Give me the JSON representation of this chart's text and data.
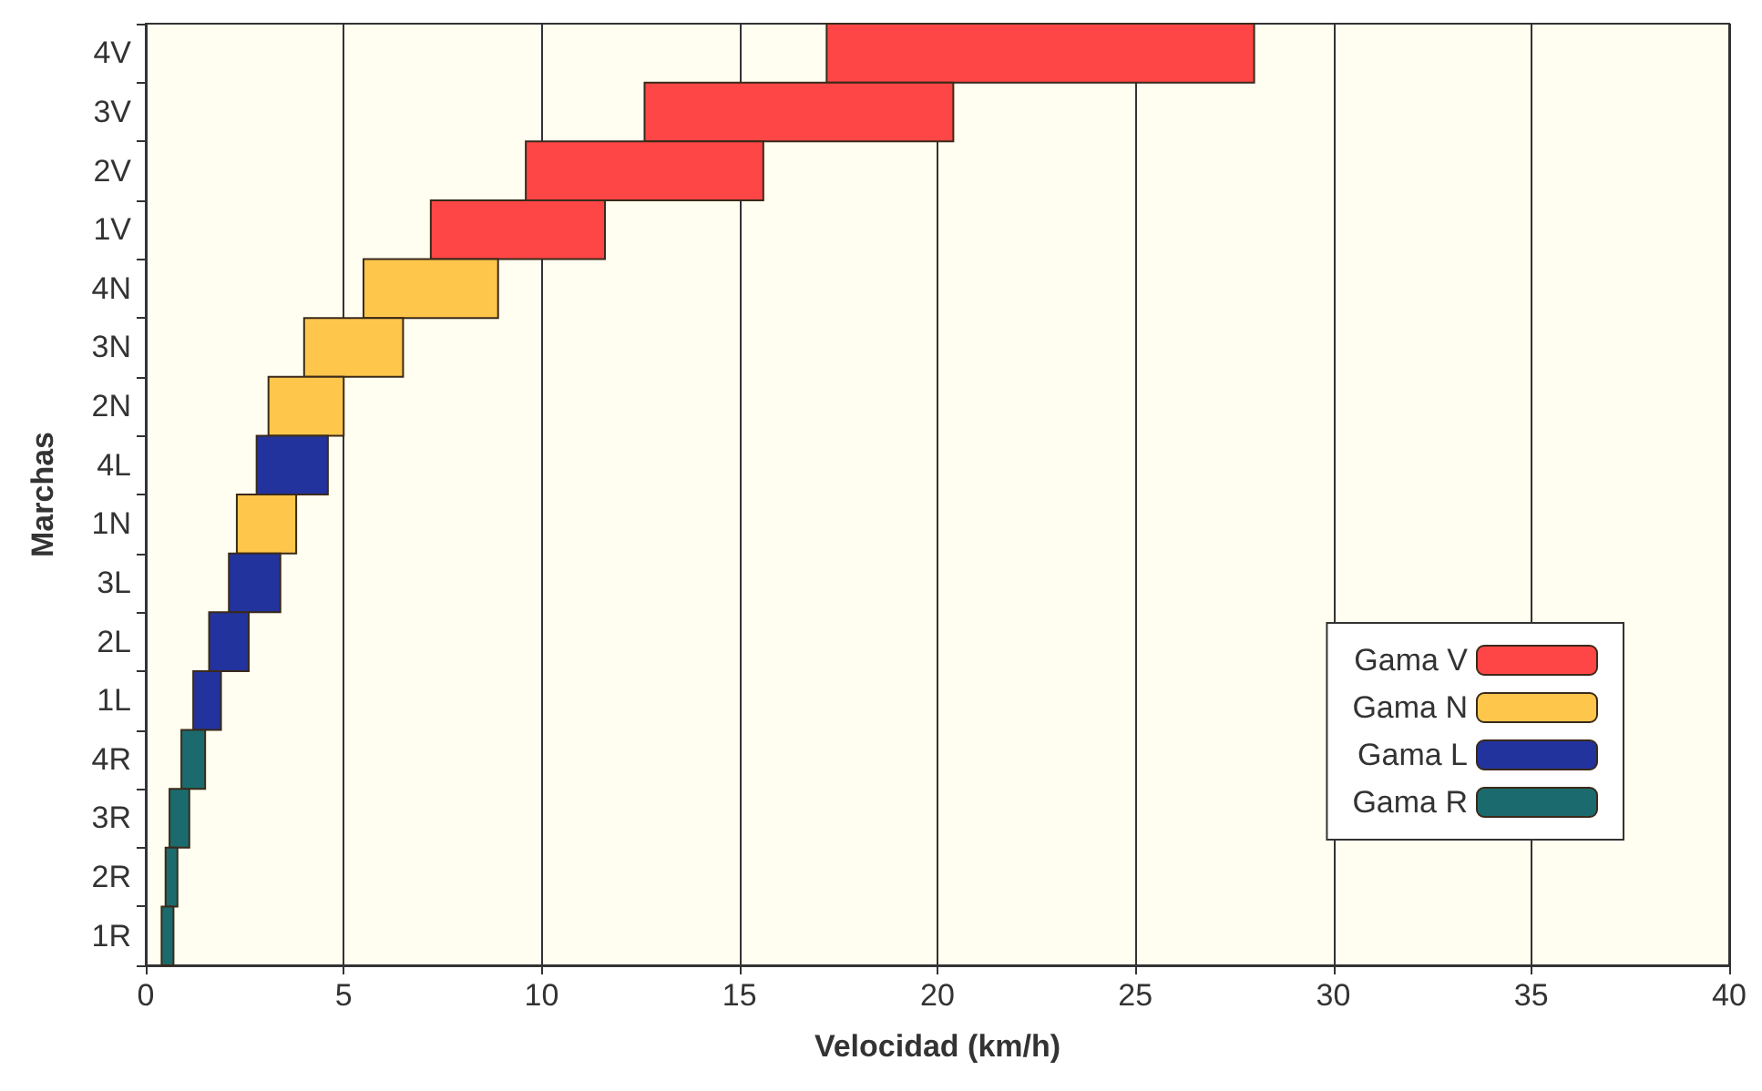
{
  "chart_data": {
    "type": "bar",
    "orientation": "horizontal",
    "xlabel": "Velocidad (km/h)",
    "ylabel": "Marchas",
    "categories": [
      "4V",
      "3V",
      "2V",
      "1V",
      "4N",
      "3N",
      "2N",
      "4L",
      "1N",
      "3L",
      "2L",
      "1L",
      "4R",
      "3R",
      "2R",
      "1R"
    ],
    "series": [
      {
        "name": "Gama V",
        "color": "#ff4646",
        "base": [
          17.2,
          12.6,
          9.6,
          7.2,
          null,
          null,
          null,
          null,
          null,
          null,
          null,
          null,
          null,
          null,
          null,
          null
        ],
        "values": [
          10.8,
          7.8,
          6.0,
          4.4,
          null,
          null,
          null,
          null,
          null,
          null,
          null,
          null,
          null,
          null,
          null,
          null
        ]
      },
      {
        "name": "Gama N",
        "color": "#ffc64c",
        "base": [
          null,
          null,
          null,
          null,
          5.5,
          4.0,
          3.1,
          null,
          2.3,
          null,
          null,
          null,
          null,
          null,
          null,
          null
        ],
        "values": [
          null,
          null,
          null,
          null,
          3.4,
          2.5,
          1.9,
          null,
          1.5,
          null,
          null,
          null,
          null,
          null,
          null,
          null
        ]
      },
      {
        "name": "Gama L",
        "color": "#22339e",
        "base": [
          null,
          null,
          null,
          null,
          null,
          null,
          null,
          2.8,
          null,
          2.1,
          1.6,
          1.2,
          null,
          null,
          null,
          null
        ],
        "values": [
          null,
          null,
          null,
          null,
          null,
          null,
          null,
          1.8,
          null,
          1.3,
          1.0,
          0.7,
          null,
          null,
          null,
          null
        ]
      },
      {
        "name": "Gama R",
        "color": "#1b6b6e",
        "base": [
          null,
          null,
          null,
          null,
          null,
          null,
          null,
          null,
          null,
          null,
          null,
          null,
          0.9,
          0.6,
          0.5,
          0.4
        ],
        "values": [
          null,
          null,
          null,
          null,
          null,
          null,
          null,
          null,
          null,
          null,
          null,
          null,
          0.6,
          0.5,
          0.3,
          0.3
        ]
      }
    ],
    "xlim": [
      0,
      40
    ],
    "xticks": [
      0,
      5,
      10,
      15,
      20,
      25,
      30,
      35,
      40
    ],
    "grid": "x",
    "legend": "bottom right"
  }
}
